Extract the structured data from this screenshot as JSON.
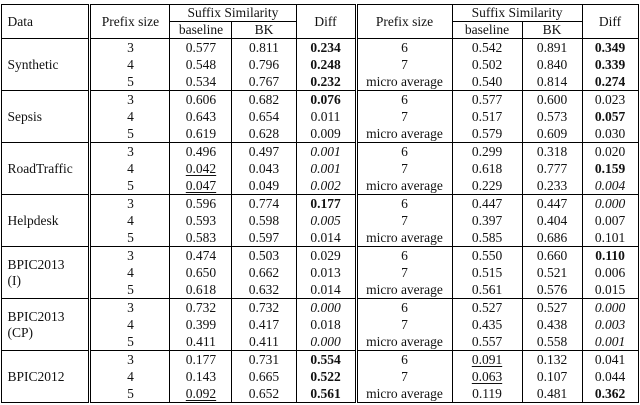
{
  "colors": {
    "border": "#000000",
    "background": "#ffffff",
    "text": "#111111"
  },
  "table": {
    "header": {
      "data": "Data",
      "prefix_size": "Prefix size",
      "suffix_similarity": "Suffix Similarity",
      "baseline": "baseline",
      "bk": "BK",
      "diff": "Diff"
    },
    "groups": [
      {
        "label_lines": [
          "Synthetic"
        ],
        "rows": [
          {
            "left": {
              "prefix": "3",
              "baseline": "0.577",
              "bk": "0.811",
              "diff": "0.234",
              "diff_style": "bold"
            },
            "right": {
              "prefix": "6",
              "baseline": "0.542",
              "bk": "0.891",
              "diff": "0.349",
              "diff_style": "bold"
            }
          },
          {
            "left": {
              "prefix": "4",
              "baseline": "0.548",
              "bk": "0.796",
              "diff": "0.248",
              "diff_style": "bold"
            },
            "right": {
              "prefix": "7",
              "baseline": "0.502",
              "bk": "0.840",
              "diff": "0.339",
              "diff_style": "bold"
            }
          },
          {
            "left": {
              "prefix": "5",
              "baseline": "0.534",
              "bk": "0.767",
              "diff": "0.232",
              "diff_style": "bold"
            },
            "right": {
              "prefix": "micro average",
              "baseline": "0.540",
              "bk": "0.814",
              "diff": "0.274",
              "diff_style": "bold"
            }
          }
        ]
      },
      {
        "label_lines": [
          "Sepsis"
        ],
        "rows": [
          {
            "left": {
              "prefix": "3",
              "baseline": "0.606",
              "bk": "0.682",
              "diff": "0.076",
              "diff_style": "bold"
            },
            "right": {
              "prefix": "6",
              "baseline": "0.577",
              "bk": "0.600",
              "diff": "0.023",
              "diff_style": "normal"
            }
          },
          {
            "left": {
              "prefix": "4",
              "baseline": "0.643",
              "bk": "0.654",
              "diff": "0.011",
              "diff_style": "normal"
            },
            "right": {
              "prefix": "7",
              "baseline": "0.517",
              "bk": "0.573",
              "diff": "0.057",
              "diff_style": "bold"
            }
          },
          {
            "left": {
              "prefix": "5",
              "baseline": "0.619",
              "bk": "0.628",
              "diff": "0.009",
              "diff_style": "normal"
            },
            "right": {
              "prefix": "micro average",
              "baseline": "0.579",
              "bk": "0.609",
              "diff": "0.030",
              "diff_style": "normal"
            }
          }
        ]
      },
      {
        "label_lines": [
          "RoadTraffic"
        ],
        "rows": [
          {
            "left": {
              "prefix": "3",
              "baseline": "0.496",
              "bk": "0.497",
              "diff": "0.001",
              "diff_style": "italic"
            },
            "right": {
              "prefix": "6",
              "baseline": "0.299",
              "bk": "0.318",
              "diff": "0.020",
              "diff_style": "normal"
            }
          },
          {
            "left": {
              "prefix": "4",
              "baseline": "0.042",
              "baseline_style": "underline",
              "bk": "0.043",
              "diff": "0.001",
              "diff_style": "italic"
            },
            "right": {
              "prefix": "7",
              "baseline": "0.618",
              "bk": "0.777",
              "diff": "0.159",
              "diff_style": "bold"
            }
          },
          {
            "left": {
              "prefix": "5",
              "baseline": "0.047",
              "baseline_style": "underline",
              "bk": "0.049",
              "diff": "0.002",
              "diff_style": "italic"
            },
            "right": {
              "prefix": "micro average",
              "baseline": "0.229",
              "bk": "0.233",
              "diff": "0.004",
              "diff_style": "italic"
            }
          }
        ]
      },
      {
        "label_lines": [
          "Helpdesk"
        ],
        "rows": [
          {
            "left": {
              "prefix": "3",
              "baseline": "0.596",
              "bk": "0.774",
              "diff": "0.177",
              "diff_style": "bold"
            },
            "right": {
              "prefix": "6",
              "baseline": "0.447",
              "bk": "0.447",
              "diff": "0.000",
              "diff_style": "italic"
            }
          },
          {
            "left": {
              "prefix": "4",
              "baseline": "0.593",
              "bk": "0.598",
              "diff": "0.005",
              "diff_style": "italic"
            },
            "right": {
              "prefix": "7",
              "baseline": "0.397",
              "bk": "0.404",
              "diff": "0.007",
              "diff_style": "normal"
            }
          },
          {
            "left": {
              "prefix": "5",
              "baseline": "0.583",
              "bk": "0.597",
              "diff": "0.014",
              "diff_style": "normal"
            },
            "right": {
              "prefix": "micro average",
              "baseline": "0.585",
              "bk": "0.686",
              "diff": "0.101",
              "diff_style": "normal"
            }
          }
        ]
      },
      {
        "label_lines": [
          "BPIC2013",
          "(I)"
        ],
        "rows": [
          {
            "left": {
              "prefix": "3",
              "baseline": "0.474",
              "bk": "0.503",
              "diff": "0.029",
              "diff_style": "normal"
            },
            "right": {
              "prefix": "6",
              "baseline": "0.550",
              "bk": "0.660",
              "diff": "0.110",
              "diff_style": "bold"
            }
          },
          {
            "left": {
              "prefix": "4",
              "baseline": "0.650",
              "bk": "0.662",
              "diff": "0.013",
              "diff_style": "normal"
            },
            "right": {
              "prefix": "7",
              "baseline": "0.515",
              "bk": "0.521",
              "diff": "0.006",
              "diff_style": "normal"
            }
          },
          {
            "left": {
              "prefix": "5",
              "baseline": "0.618",
              "bk": "0.632",
              "diff": "0.014",
              "diff_style": "normal"
            },
            "right": {
              "prefix": "micro average",
              "baseline": "0.561",
              "bk": "0.576",
              "diff": "0.015",
              "diff_style": "normal"
            }
          }
        ]
      },
      {
        "label_lines": [
          "BPIC2013",
          "(CP)"
        ],
        "rows": [
          {
            "left": {
              "prefix": "3",
              "baseline": "0.732",
              "bk": "0.732",
              "diff": "0.000",
              "diff_style": "italic"
            },
            "right": {
              "prefix": "6",
              "baseline": "0.527",
              "bk": "0.527",
              "diff": "0.000",
              "diff_style": "italic"
            }
          },
          {
            "left": {
              "prefix": "4",
              "baseline": "0.399",
              "bk": "0.417",
              "diff": "0.018",
              "diff_style": "normal"
            },
            "right": {
              "prefix": "7",
              "baseline": "0.435",
              "bk": "0.438",
              "diff": "0.003",
              "diff_style": "italic"
            }
          },
          {
            "left": {
              "prefix": "5",
              "baseline": "0.411",
              "bk": "0.411",
              "diff": "0.000",
              "diff_style": "italic"
            },
            "right": {
              "prefix": "micro average",
              "baseline": "0.557",
              "bk": "0.558",
              "diff": "0.001",
              "diff_style": "italic"
            }
          }
        ]
      },
      {
        "label_lines": [
          "BPIC2012"
        ],
        "rows": [
          {
            "left": {
              "prefix": "3",
              "baseline": "0.177",
              "bk": "0.731",
              "diff": "0.554",
              "diff_style": "bold"
            },
            "right": {
              "prefix": "6",
              "baseline": "0.091",
              "baseline_style": "underline",
              "bk": "0.132",
              "diff": "0.041",
              "diff_style": "normal"
            }
          },
          {
            "left": {
              "prefix": "4",
              "baseline": "0.143",
              "bk": "0.665",
              "diff": "0.522",
              "diff_style": "bold"
            },
            "right": {
              "prefix": "7",
              "baseline": "0.063",
              "baseline_style": "underline",
              "bk": "0.107",
              "diff": "0.044",
              "diff_style": "normal"
            }
          },
          {
            "left": {
              "prefix": "5",
              "baseline": "0.092",
              "baseline_style": "underline",
              "bk": "0.652",
              "diff": "0.561",
              "diff_style": "bold"
            },
            "right": {
              "prefix": "micro average",
              "baseline": "0.119",
              "bk": "0.481",
              "diff": "0.362",
              "diff_style": "bold"
            }
          }
        ]
      }
    ]
  }
}
